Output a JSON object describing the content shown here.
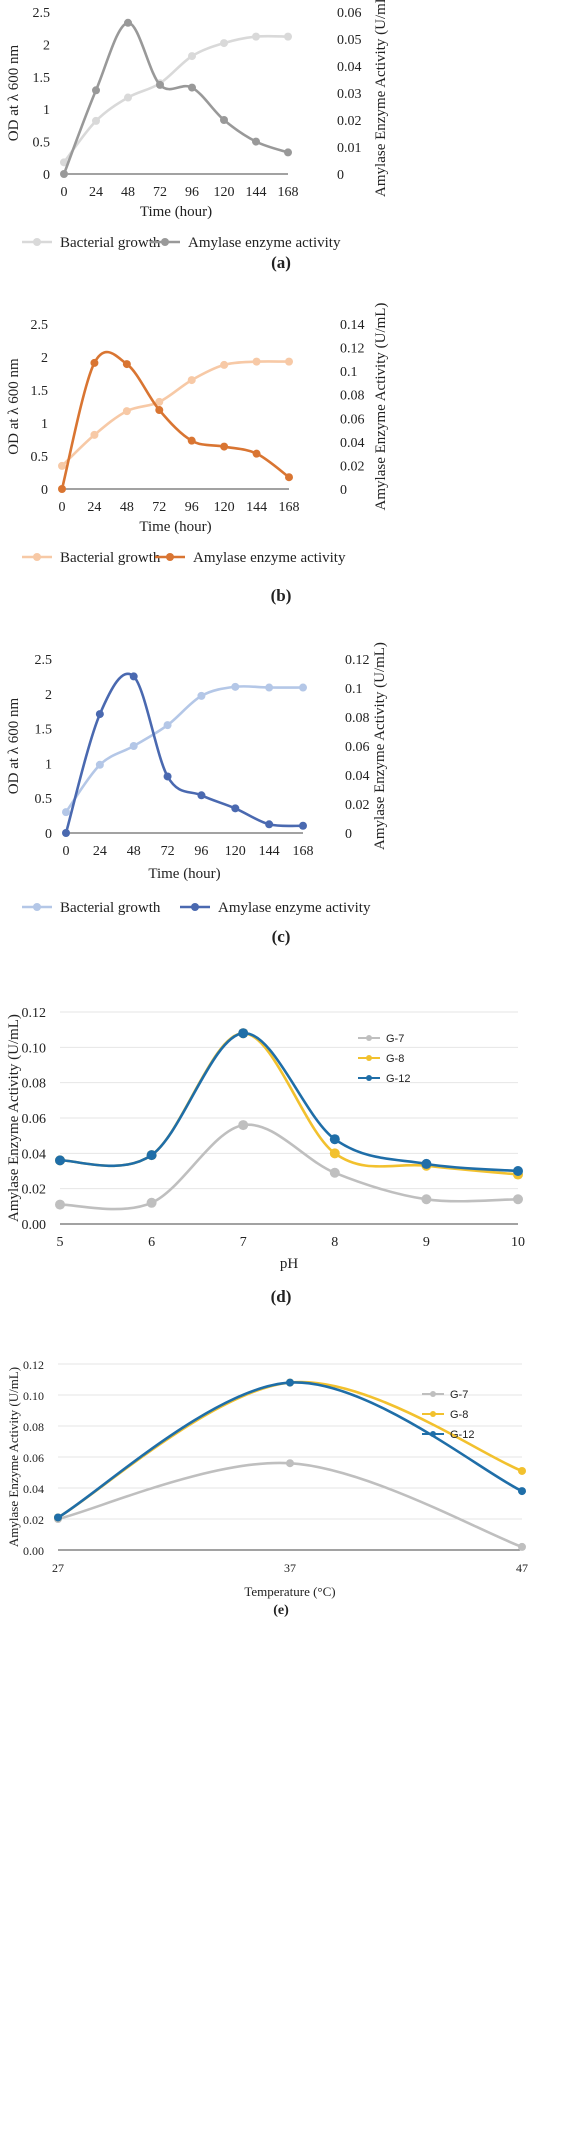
{
  "chart_data": [
    {
      "type": "line",
      "panel_label": "(a)",
      "x": [
        0,
        24,
        48,
        72,
        96,
        120,
        144,
        168
      ],
      "xlabel": "Time (hour)",
      "ylabel": "OD at λ 600 nm",
      "y2label": "Amylase Enzyme Activity (U/mL)",
      "ylim": [
        0,
        2.5
      ],
      "y2lim": [
        0,
        0.06
      ],
      "yticks": [
        "0",
        "0.5",
        "1",
        "1.5",
        "2",
        "2.5"
      ],
      "y2ticks": [
        "0",
        "0.01",
        "0.02",
        "0.03",
        "0.04",
        "0.05",
        "0.06"
      ],
      "grid": false,
      "legend": "bottom",
      "series": [
        {
          "name": "Bacterial growth",
          "axis": "left",
          "color": "#d9d9d9",
          "values": [
            0.18,
            0.82,
            1.18,
            1.4,
            1.82,
            2.02,
            2.12,
            2.12
          ]
        },
        {
          "name": "Amylase enzyme activity",
          "axis": "right",
          "color": "#999999",
          "values": [
            0.0,
            0.031,
            0.056,
            0.033,
            0.032,
            0.02,
            0.012,
            0.008
          ]
        }
      ]
    },
    {
      "type": "line",
      "panel_label": "(b)",
      "x": [
        0,
        24,
        48,
        72,
        96,
        120,
        144,
        168
      ],
      "xlabel": "Time (hour)",
      "ylabel": "OD at λ 600 nm",
      "y2label": "Amylase Enzyme Activity (U/mL)",
      "ylim": [
        0,
        2.5
      ],
      "y2lim": [
        0,
        0.14
      ],
      "yticks": [
        "0",
        "0.5",
        "1",
        "1.5",
        "2",
        "2.5"
      ],
      "y2ticks": [
        "0",
        "0.02",
        "0.04",
        "0.06",
        "0.08",
        "0.1",
        "0.12",
        "0.14"
      ],
      "grid": false,
      "legend": "bottom",
      "series": [
        {
          "name": "Bacterial growth",
          "axis": "left",
          "color": "#f7c9a6",
          "values": [
            0.35,
            0.82,
            1.18,
            1.32,
            1.65,
            1.88,
            1.93,
            1.93
          ]
        },
        {
          "name": "Amylase enzyme activity",
          "axis": "right",
          "color": "#d97532",
          "values": [
            0.0,
            0.107,
            0.106,
            0.067,
            0.041,
            0.036,
            0.03,
            0.01
          ]
        }
      ]
    },
    {
      "type": "line",
      "panel_label": "(c)",
      "x": [
        0,
        24,
        48,
        72,
        96,
        120,
        144,
        168
      ],
      "xlabel": "Time (hour)",
      "ylabel": "OD at λ 600 nm",
      "y2label": "Amylase Enzyme Activity (U/mL)",
      "ylim": [
        0,
        2.5
      ],
      "y2lim": [
        0,
        0.12
      ],
      "yticks": [
        "0",
        "0.5",
        "1",
        "1.5",
        "2",
        "2.5"
      ],
      "y2ticks": [
        "0",
        "0.02",
        "0.04",
        "0.06",
        "0.08",
        "0.1",
        "0.12"
      ],
      "grid": false,
      "legend": "bottom",
      "series": [
        {
          "name": "Bacterial growth",
          "axis": "left",
          "color": "#b4c7e7",
          "values": [
            0.3,
            0.98,
            1.25,
            1.55,
            1.97,
            2.1,
            2.09,
            2.09
          ]
        },
        {
          "name": "Amylase enzyme activity",
          "axis": "right",
          "color": "#4a69b0",
          "values": [
            0.0,
            0.082,
            0.108,
            0.039,
            0.026,
            0.017,
            0.006,
            0.005
          ]
        }
      ]
    },
    {
      "type": "line",
      "panel_label": "(d)",
      "x": [
        5,
        6,
        7,
        8,
        9,
        10
      ],
      "xlabel": "pH",
      "ylabel": "Amylase Enzyme Activity (U/mL)",
      "ylim": [
        0,
        0.12
      ],
      "yticks": [
        "0.00",
        "0.02",
        "0.04",
        "0.06",
        "0.08",
        "0.10",
        "0.12"
      ],
      "grid": true,
      "legend": "top-right",
      "series": [
        {
          "name": "G-7",
          "color": "#bfbfbf",
          "values": [
            0.011,
            0.012,
            0.056,
            0.029,
            0.014,
            0.014
          ]
        },
        {
          "name": "G-8",
          "color": "#f2c12e",
          "values": [
            0.036,
            0.039,
            0.108,
            0.04,
            0.033,
            0.028
          ]
        },
        {
          "name": "G-12",
          "color": "#1f6ea8",
          "values": [
            0.036,
            0.039,
            0.108,
            0.048,
            0.034,
            0.03
          ]
        }
      ]
    },
    {
      "type": "line",
      "panel_label": "(e)",
      "x": [
        27,
        37,
        47
      ],
      "xlabel": "Temperature (°C)",
      "ylabel": "Amylase Enzyme Activity (U/mL)",
      "ylim": [
        0,
        0.12
      ],
      "yticks": [
        "0.00",
        "0.02",
        "0.04",
        "0.06",
        "0.08",
        "0.10",
        "0.12"
      ],
      "grid": true,
      "legend": "top-right",
      "series": [
        {
          "name": "G-7",
          "color": "#bfbfbf",
          "values": [
            0.02,
            0.056,
            0.002
          ]
        },
        {
          "name": "G-8",
          "color": "#f2c12e",
          "values": [
            0.021,
            0.108,
            0.051
          ]
        },
        {
          "name": "G-12",
          "color": "#1f6ea8",
          "values": [
            0.021,
            0.108,
            0.038
          ]
        }
      ]
    }
  ]
}
